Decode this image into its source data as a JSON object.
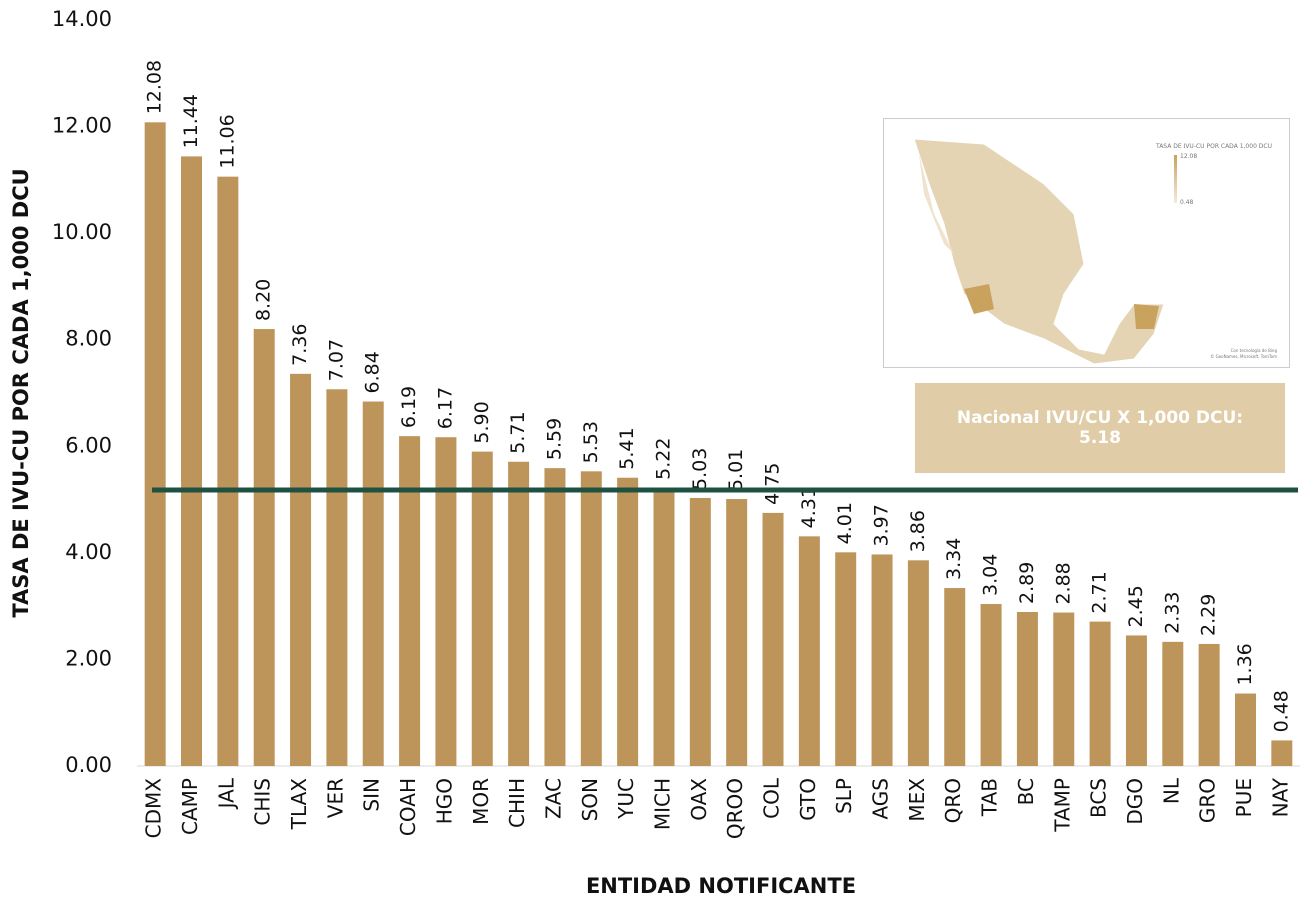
{
  "chart_data": {
    "type": "bar",
    "y_label": "TASA DE IVU-CU POR CADA 1,000 DCU",
    "x_label": "ENTIDAD NOTIFICANTE",
    "categories": [
      "CDMX",
      "CAMP",
      "JAL",
      "CHIS",
      "TLAX",
      "VER",
      "SIN",
      "COAH",
      "HGO",
      "MOR",
      "CHIH",
      "ZAC",
      "SON",
      "YUC",
      "MICH",
      "OAX",
      "QROO",
      "COL",
      "GTO",
      "SLP",
      "AGS",
      "MEX",
      "QRO",
      "TAB",
      "BC",
      "TAMP",
      "BCS",
      "DGO",
      "NL",
      "GRO",
      "PUE",
      "NAY"
    ],
    "values": [
      12.08,
      11.44,
      11.06,
      8.2,
      7.36,
      7.07,
      6.84,
      6.19,
      6.17,
      5.9,
      5.71,
      5.59,
      5.53,
      5.41,
      5.22,
      5.03,
      5.01,
      4.75,
      4.31,
      4.01,
      3.97,
      3.86,
      3.34,
      3.04,
      2.89,
      2.88,
      2.71,
      2.45,
      2.33,
      2.29,
      1.36,
      0.48
    ],
    "value_labels": [
      "12.08",
      "11.44",
      "11.06",
      "8.20",
      "7.36",
      "7.07",
      "6.84",
      "6.19",
      "6.17",
      "5.90",
      "5.71",
      "5.59",
      "5.53",
      "5.41",
      "5.22",
      "5.03",
      "5.01",
      "4.75",
      "4.31",
      "4.01",
      "3.97",
      "3.86",
      "3.34",
      "3.04",
      "2.89",
      "2.88",
      "2.71",
      "2.45",
      "2.33",
      "2.29",
      "1.36",
      "0.48"
    ],
    "color": "#bd955a",
    "ylim": [
      0,
      14
    ],
    "yticks": [
      {
        "value": 0,
        "label": "0.00"
      },
      {
        "value": 2,
        "label": "2.00"
      },
      {
        "value": 4,
        "label": "4.00"
      },
      {
        "value": 6,
        "label": "6.00"
      },
      {
        "value": 8,
        "label": "8.00"
      },
      {
        "value": 10,
        "label": "10.00"
      },
      {
        "value": 12,
        "label": "12.00"
      },
      {
        "value": 14,
        "label": "14.00"
      }
    ],
    "reference_line": {
      "value": 5.18,
      "label": "Nacional IVU/CU X 1,000 DCU: 5.18",
      "color": "#1f5143"
    },
    "map_inset": {
      "legend_title": "TASA DE IVU-CU POR CADA 1,000 DCU",
      "legend_max": "12.08",
      "legend_min": "0.48",
      "credit_1": "Con tecnología de Bing",
      "credit_2": "© GeoNames, Microsoft, TomTom"
    }
  }
}
